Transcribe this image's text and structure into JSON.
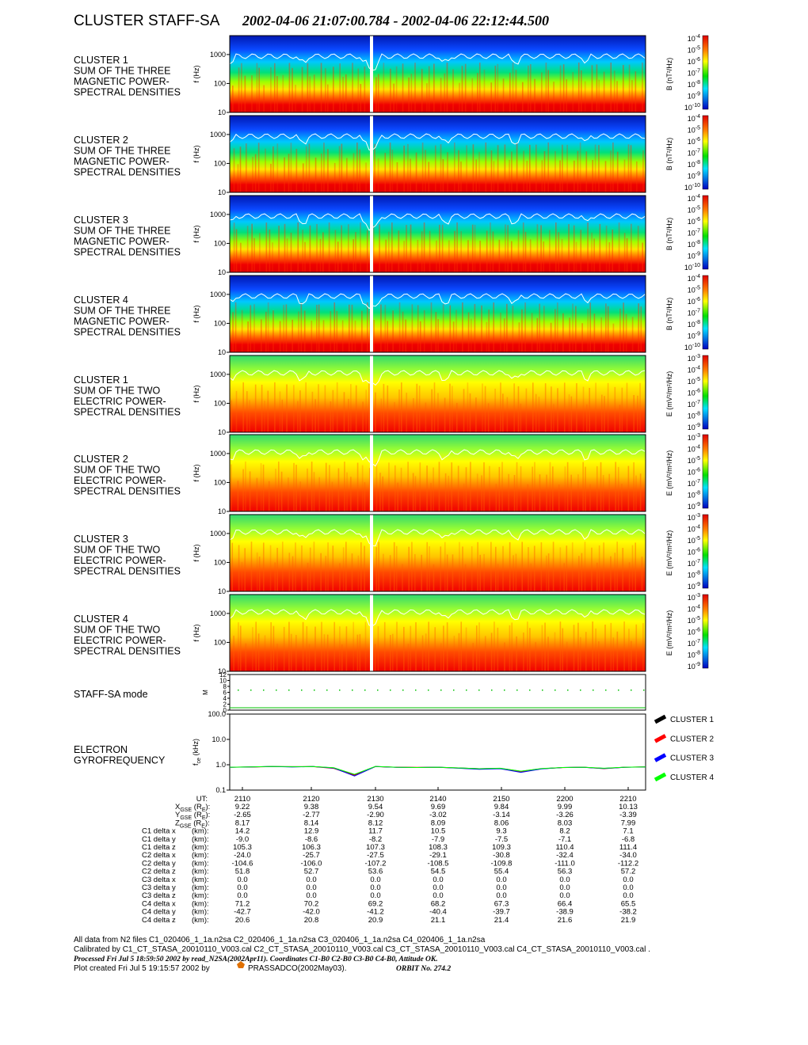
{
  "header": {
    "title": "CLUSTER STAFF-SA",
    "interval": "2002-04-06 21:07:00.784 - 2002-04-06 22:12:44.500"
  },
  "freq_axis": {
    "label": "f (Hz)",
    "ylim": [
      10,
      4500
    ],
    "yticks": [
      10,
      100,
      1000
    ]
  },
  "colorbars": {
    "B": {
      "label": "B (nT²/Hz)",
      "ticks": [
        {
          "base": "10",
          "exp": "-4"
        },
        {
          "base": "10",
          "exp": "-5"
        },
        {
          "base": "10",
          "exp": "-6"
        },
        {
          "base": "10",
          "exp": "-7"
        },
        {
          "base": "10",
          "exp": "-8"
        },
        {
          "base": "10",
          "exp": "-9"
        },
        {
          "base": "10",
          "exp": "-10"
        }
      ]
    },
    "E": {
      "label": "E (mV²/m²/Hz)",
      "ticks": [
        {
          "base": "10",
          "exp": "-3"
        },
        {
          "base": "10",
          "exp": "-4"
        },
        {
          "base": "10",
          "exp": "-5"
        },
        {
          "base": "10",
          "exp": "-6"
        },
        {
          "base": "10",
          "exp": "-7"
        },
        {
          "base": "10",
          "exp": "-8"
        },
        {
          "base": "10",
          "exp": "-9"
        }
      ]
    }
  },
  "panels": [
    {
      "kind": "B",
      "label_lines": [
        "CLUSTER 1",
        "SUM OF THE THREE",
        "MAGNETIC POWER-",
        "SPECTRAL DENSITIES"
      ]
    },
    {
      "kind": "B",
      "label_lines": [
        "CLUSTER 2",
        "SUM OF THE THREE",
        "MAGNETIC POWER-",
        "SPECTRAL DENSITIES"
      ]
    },
    {
      "kind": "B",
      "label_lines": [
        "CLUSTER 3",
        "SUM OF THE THREE",
        "MAGNETIC POWER-",
        "SPECTRAL DENSITIES"
      ]
    },
    {
      "kind": "B",
      "label_lines": [
        "CLUSTER 4",
        "SUM OF THE THREE",
        "MAGNETIC POWER-",
        "SPECTRAL DENSITIES"
      ]
    },
    {
      "kind": "E",
      "label_lines": [
        "CLUSTER 1",
        "SUM OF THE TWO",
        "ELECTRIC POWER-",
        "SPECTRAL DENSITIES"
      ]
    },
    {
      "kind": "E",
      "label_lines": [
        "CLUSTER 2",
        "SUM OF THE TWO",
        "ELECTRIC POWER-",
        "SPECTRAL DENSITIES"
      ]
    },
    {
      "kind": "E",
      "label_lines": [
        "CLUSTER 3",
        "SUM OF THE TWO",
        "ELECTRIC POWER-",
        "SPECTRAL DENSITIES"
      ]
    },
    {
      "kind": "E",
      "label_lines": [
        "CLUSTER 4",
        "SUM OF THE TWO",
        "ELECTRIC POWER-",
        "SPECTRAL DENSITIES"
      ]
    }
  ],
  "mode_panel": {
    "label": "STAFF-SA mode",
    "ylabel": "M",
    "ylim": [
      0,
      12
    ],
    "yticks": [
      0,
      2,
      4,
      6,
      8,
      10,
      12
    ]
  },
  "chart_data": {
    "type": "line",
    "title_lines": [
      "ELECTRON",
      "GYROFREQUENCY"
    ],
    "ylabel": [
      "f",
      "ce",
      " (kHz)"
    ],
    "log_y": true,
    "ylim": [
      0.1,
      100
    ],
    "yticks": [
      0.1,
      {
        "value": 1,
        "label": "1.0"
      },
      {
        "value": 10,
        "label": "10.0"
      },
      {
        "value": 100,
        "label": "100.0"
      }
    ],
    "series": [
      {
        "name": "CLUSTER 1",
        "color": "#000000",
        "values": [
          0.8,
          0.82,
          0.85,
          0.83,
          0.85,
          0.75,
          0.4,
          0.85,
          0.8,
          0.78,
          0.8,
          0.75,
          0.7,
          0.72,
          0.55,
          0.7,
          0.78,
          0.8,
          0.72,
          0.8,
          0.82
        ]
      },
      {
        "name": "CLUSTER 2",
        "color": "#ff0000",
        "values": [
          0.8,
          0.81,
          0.84,
          0.84,
          0.84,
          0.72,
          0.38,
          0.84,
          0.8,
          0.79,
          0.79,
          0.74,
          0.68,
          0.72,
          0.52,
          0.7,
          0.77,
          0.8,
          0.7,
          0.8,
          0.82
        ]
      },
      {
        "name": "CLUSTER 3",
        "color": "#0000ff",
        "values": [
          0.79,
          0.82,
          0.85,
          0.82,
          0.85,
          0.74,
          0.36,
          0.85,
          0.79,
          0.78,
          0.8,
          0.73,
          0.66,
          0.7,
          0.5,
          0.69,
          0.78,
          0.79,
          0.71,
          0.79,
          0.82
        ]
      },
      {
        "name": "CLUSTER 4",
        "color": "#00ff00",
        "values": [
          0.8,
          0.82,
          0.86,
          0.84,
          0.85,
          0.76,
          0.42,
          0.86,
          0.8,
          0.78,
          0.8,
          0.75,
          0.7,
          0.73,
          0.56,
          0.71,
          0.78,
          0.8,
          0.73,
          0.8,
          0.82
        ]
      }
    ]
  },
  "table": {
    "header": {
      "label": [
        "UT:"
      ],
      "values": [
        "2110",
        "2120",
        "2130",
        "2140",
        "2150",
        "2200",
        "2210"
      ]
    },
    "rows": [
      {
        "label": [
          "X",
          "GSE",
          " (R",
          "E",
          "):"
        ],
        "values": [
          "9.22",
          "9.38",
          "9.54",
          "9.69",
          "9.84",
          "9.99",
          "10.13"
        ]
      },
      {
        "label": [
          "Y",
          "GSE",
          " (R",
          "E",
          "):"
        ],
        "values": [
          "-2.65",
          "-2.77",
          "-2.90",
          "-3.02",
          "-3.14",
          "-3.26",
          "-3.39"
        ]
      },
      {
        "label": [
          "Z",
          "GSE",
          " (R",
          "E",
          "):"
        ],
        "values": [
          "8.17",
          "8.14",
          "8.12",
          "8.09",
          "8.06",
          "8.03",
          "7.99"
        ]
      },
      {
        "label": [
          "C1 delta x",
          "(km):"
        ],
        "values": [
          "14.2",
          "12.9",
          "11.7",
          "10.5",
          "9.3",
          "8.2",
          "7.1"
        ]
      },
      {
        "label": [
          "C1 delta y",
          "(km):"
        ],
        "values": [
          "-9.0",
          "-8.6",
          "-8.2",
          "-7.9",
          "-7.5",
          "-7.1",
          "-6.8"
        ]
      },
      {
        "label": [
          "C1 delta z",
          "(km):"
        ],
        "values": [
          "105.3",
          "106.3",
          "107.3",
          "108.3",
          "109.3",
          "110.4",
          "111.4"
        ]
      },
      {
        "label": [
          "C2 delta x",
          "(km):"
        ],
        "values": [
          "-24.0",
          "-25.7",
          "-27.5",
          "-29.1",
          "-30.8",
          "-32.4",
          "-34.0"
        ]
      },
      {
        "label": [
          "C2 delta y",
          "(km):"
        ],
        "values": [
          "-104.6",
          "-106.0",
          "-107.2",
          "-108.5",
          "-109.8",
          "-111.0",
          "-112.2"
        ]
      },
      {
        "label": [
          "C2 delta z",
          "(km):"
        ],
        "values": [
          "51.8",
          "52.7",
          "53.6",
          "54.5",
          "55.4",
          "56.3",
          "57.2"
        ]
      },
      {
        "label": [
          "C3 delta x",
          "(km):"
        ],
        "values": [
          "0.0",
          "0.0",
          "0.0",
          "0.0",
          "0.0",
          "0.0",
          "0.0"
        ]
      },
      {
        "label": [
          "C3 delta y",
          "(km):"
        ],
        "values": [
          "0.0",
          "0.0",
          "0.0",
          "0.0",
          "0.0",
          "0.0",
          "0.0"
        ]
      },
      {
        "label": [
          "C3 delta z",
          "(km):"
        ],
        "values": [
          "0.0",
          "0.0",
          "0.0",
          "0.0",
          "0.0",
          "0.0",
          "0.0"
        ]
      },
      {
        "label": [
          "C4 delta x",
          "(km):"
        ],
        "values": [
          "71.2",
          "70.2",
          "69.2",
          "68.2",
          "67.3",
          "66.4",
          "65.5"
        ]
      },
      {
        "label": [
          "C4 delta y",
          "(km):"
        ],
        "values": [
          "-42.7",
          "-42.0",
          "-41.2",
          "-40.4",
          "-39.7",
          "-38.9",
          "-38.2"
        ]
      },
      {
        "label": [
          "C4 delta z",
          "(km):"
        ],
        "values": [
          "20.6",
          "20.8",
          "20.9",
          "21.1",
          "21.4",
          "21.6",
          "21.9"
        ]
      }
    ]
  },
  "footer": {
    "line1": "All data from N2 files C1_020406_1_1a.n2sa C2_020406_1_1a.n2sa C3_020406_1_1a.n2sa C4_020406_1_1a.n2sa",
    "line2": "Calibrated by  C1_CT_STASA_20010110_V003.cal  C2_CT_STASA_20010110_V003.cal  C3_CT_STASA_20010110_V003.cal  C4_CT_STASA_20010110_V003.cal .",
    "line3": "Processed Fri Jul  5 18:59:50 2002 by read_N2SA(2002Apr11). Coordinates C1-B0 C2-B0 C3-B0 C4-B0, Attitude OK.",
    "line4a": "Plot created Fri Jul  5 19:15:57 2002 by",
    "line4b": "PRASSADCO(2002May03).",
    "orbit": "ORBIT No. 274.2"
  }
}
